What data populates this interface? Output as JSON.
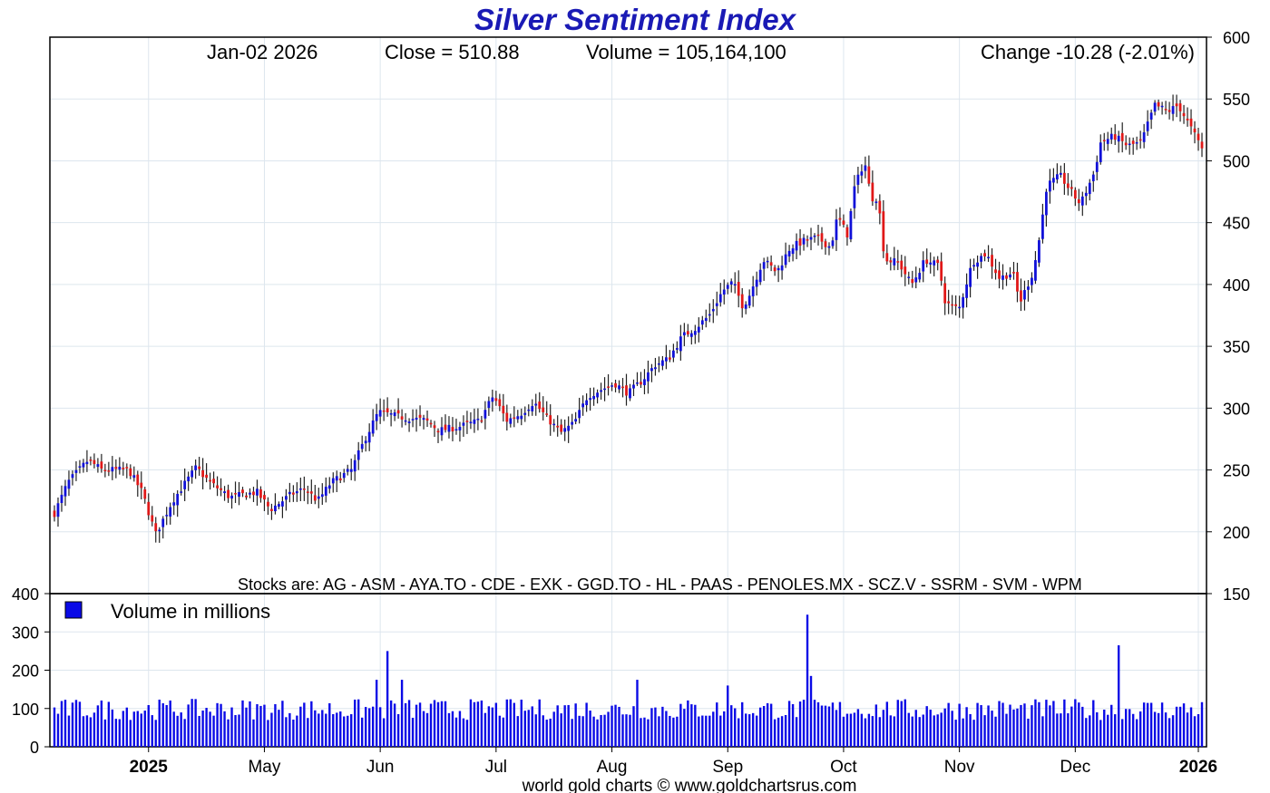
{
  "chart_data": {
    "type": "candlestick",
    "title": "Silver Sentiment Index",
    "info": {
      "date": "Jan-02  2026",
      "close": "Close = 510.88",
      "volume": "Volume = 105,164,100",
      "change": "Change -10.28 (-2.01%)"
    },
    "stocks_note": "Stocks are: AG - ASM - AYA.TO - CDE - EXK - GGD.TO - HL - PAAS - PENOLES.MX - SCZ.V - SSRM - SVM - WPM",
    "volume_legend": "Volume in millions",
    "footer": "world gold charts © www.goldchartsrus.com",
    "price_axis": {
      "ylim": [
        150,
        600
      ],
      "ticks": [
        150,
        200,
        250,
        300,
        350,
        400,
        450,
        500,
        550,
        600
      ]
    },
    "volume_axis": {
      "ylim": [
        0,
        400
      ],
      "ticks": [
        0,
        100,
        200,
        300,
        400
      ]
    },
    "x_ticks": [
      {
        "label": "2025",
        "bold": true,
        "index": 26
      },
      {
        "label": "May",
        "bold": false,
        "index": 58
      },
      {
        "label": "Jun",
        "bold": false,
        "index": 90
      },
      {
        "label": "Jul",
        "bold": false,
        "index": 122
      },
      {
        "label": "Aug",
        "bold": false,
        "index": 154
      },
      {
        "label": "Sep",
        "bold": false,
        "index": 186
      },
      {
        "label": "Oct",
        "bold": false,
        "index": 218
      },
      {
        "label": "Nov",
        "bold": false,
        "index": 250
      },
      {
        "label": "Dec",
        "bold": false,
        "index": 282
      },
      {
        "label": "2026",
        "bold": true,
        "index": 316
      }
    ],
    "num_bars": 318,
    "close_anchors": [
      [
        0,
        215
      ],
      [
        4,
        240
      ],
      [
        10,
        258
      ],
      [
        14,
        250
      ],
      [
        22,
        250
      ],
      [
        26,
        232
      ],
      [
        30,
        198
      ],
      [
        35,
        225
      ],
      [
        42,
        252
      ],
      [
        46,
        240
      ],
      [
        52,
        228
      ],
      [
        60,
        232
      ],
      [
        64,
        218
      ],
      [
        70,
        230
      ],
      [
        74,
        235
      ],
      [
        78,
        225
      ],
      [
        82,
        240
      ],
      [
        88,
        250
      ],
      [
        92,
        275
      ],
      [
        96,
        297
      ],
      [
        102,
        293
      ],
      [
        110,
        290
      ],
      [
        114,
        282
      ],
      [
        120,
        285
      ],
      [
        126,
        290
      ],
      [
        130,
        310
      ],
      [
        134,
        290
      ],
      [
        138,
        295
      ],
      [
        142,
        305
      ],
      [
        146,
        292
      ],
      [
        150,
        280
      ],
      [
        154,
        288
      ],
      [
        158,
        310
      ],
      [
        162,
        315
      ],
      [
        166,
        320
      ],
      [
        170,
        312
      ],
      [
        174,
        322
      ],
      [
        178,
        335
      ],
      [
        182,
        340
      ],
      [
        186,
        358
      ],
      [
        190,
        365
      ],
      [
        194,
        375
      ],
      [
        198,
        395
      ],
      [
        201,
        402
      ],
      [
        204,
        382
      ],
      [
        206,
        392
      ],
      [
        210,
        420
      ],
      [
        214,
        410
      ],
      [
        218,
        430
      ],
      [
        222,
        435
      ],
      [
        226,
        438
      ],
      [
        230,
        430
      ],
      [
        232,
        455
      ],
      [
        235,
        440
      ],
      [
        237,
        478
      ],
      [
        240,
        500
      ],
      [
        242,
        470
      ],
      [
        244,
        470
      ],
      [
        246,
        420
      ],
      [
        250,
        418
      ],
      [
        254,
        400
      ],
      [
        258,
        420
      ],
      [
        262,
        415
      ],
      [
        264,
        385
      ],
      [
        268,
        380
      ],
      [
        272,
        418
      ],
      [
        276,
        425
      ],
      [
        280,
        405
      ],
      [
        284,
        410
      ],
      [
        286,
        385
      ],
      [
        290,
        410
      ],
      [
        292,
        440
      ],
      [
        294,
        480
      ],
      [
        298,
        488
      ],
      [
        302,
        472
      ],
      [
        304,
        465
      ],
      [
        308,
        490
      ],
      [
        310,
        515
      ],
      [
        314,
        520
      ],
      [
        318,
        512
      ],
      [
        322,
        515
      ],
      [
        326,
        545
      ],
      [
        330,
        540
      ],
      [
        333,
        545
      ],
      [
        336,
        530
      ],
      [
        340,
        510
      ]
    ],
    "volume_spikes": [
      [
        92,
        250
      ],
      [
        96,
        175
      ],
      [
        208,
        345
      ],
      [
        209,
        185
      ],
      [
        294,
        265
      ],
      [
        89,
        175
      ],
      [
        161,
        175
      ],
      [
        186,
        160
      ]
    ]
  }
}
